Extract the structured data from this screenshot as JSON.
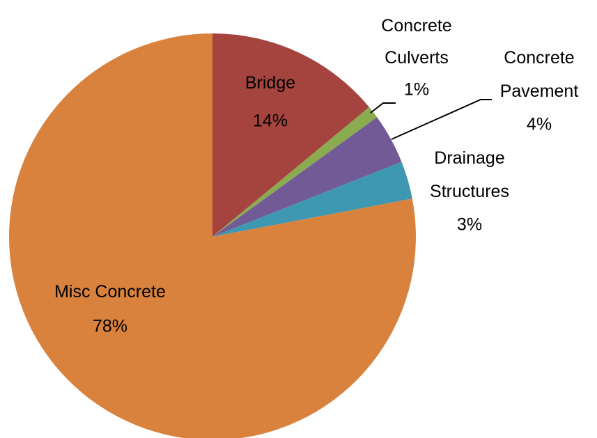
{
  "chart_data": {
    "type": "pie",
    "categories": [
      "Bridge",
      "Concrete Culverts",
      "Concrete Pavement",
      "Drainage Structures",
      "Misc Concrete"
    ],
    "values": [
      14,
      1,
      4,
      3,
      78
    ],
    "value_labels": [
      "14%",
      "1%",
      "4%",
      "3%",
      "78%"
    ],
    "colors": [
      "#a5443f",
      "#8aab4f",
      "#725a96",
      "#3f98b1",
      "#d9823e"
    ]
  }
}
